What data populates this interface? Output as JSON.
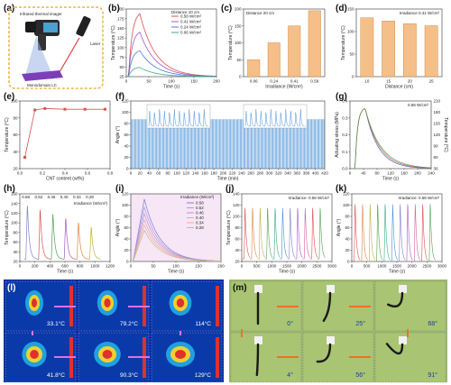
{
  "panel_letters": [
    "(a)",
    "(b)",
    "(c)",
    "(d)",
    "(e)",
    "(f)",
    "(g)",
    "(h)",
    "(i)",
    "(j)",
    "(k)",
    "(l)",
    "(m)"
  ],
  "panel_a": {
    "labels": {
      "imager": "Infrared thermal imager",
      "laser": "Laser",
      "sample": "Monodomain LC"
    }
  },
  "chart_data": [
    {
      "id": "b",
      "type": "line",
      "xlabel": "Time (s)",
      "ylabel": "Temperature (°C)",
      "xticks": [
        "0",
        "50",
        "100",
        "150",
        "200"
      ],
      "yticks": [
        "25",
        "50",
        "75",
        "100",
        "125",
        "150",
        "175",
        "200"
      ],
      "xlim": [
        0,
        200
      ],
      "ylim": [
        25,
        200
      ],
      "legend_title": "Distance 10 cm",
      "series": [
        {
          "name": "0.58 W/cm²",
          "color": "#e05050",
          "peak": 195
        },
        {
          "name": "0.41 W/cm²",
          "color": "#a05ac8",
          "peak": 145
        },
        {
          "name": "0.24 W/cm²",
          "color": "#4a7ad8",
          "peak": 95
        },
        {
          "name": "0.06 W/cm²",
          "color": "#3aaa8a",
          "peak": 50
        }
      ]
    },
    {
      "id": "c",
      "type": "bar",
      "note": "Distance 20 cm",
      "xlabel": "Irradiance (W/cm²)",
      "ylabel": "Temperature (°C)",
      "categories": [
        "0.06",
        "0.24",
        "0.41",
        "0.58"
      ],
      "values": [
        50,
        100,
        150,
        195
      ],
      "yticks": [
        "0",
        "50",
        "100",
        "150",
        "200"
      ],
      "ylim": [
        0,
        200
      ],
      "color": "#f5bf8a"
    },
    {
      "id": "d",
      "type": "bar",
      "note": "Irradiance 0.41 W/cm²",
      "xlabel": "Distance (cm)",
      "ylabel": "Temperature (°C)",
      "categories": [
        "10",
        "15",
        "20",
        "25"
      ],
      "values": [
        148,
        140,
        133,
        128
      ],
      "yticks": [
        "0",
        "50",
        "100",
        "150"
      ],
      "ylim": [
        0,
        170
      ],
      "color": "#f5bf8a"
    },
    {
      "id": "e",
      "type": "line",
      "xlabel": "CNT content (wt%)",
      "ylabel": "Temperature (°C)",
      "x": [
        0.0,
        0.1,
        0.2,
        0.4,
        0.6,
        0.8
      ],
      "y": [
        30,
        93,
        95,
        94,
        94,
        94
      ],
      "xticks": [
        "0.0",
        "0.2",
        "0.4",
        "0.6",
        "0.8"
      ],
      "yticks": [
        "20",
        "40",
        "60",
        "80",
        "100"
      ],
      "xlim": [
        -0.05,
        0.85
      ],
      "ylim": [
        15,
        105
      ],
      "color": "#e05050"
    },
    {
      "id": "f",
      "type": "line",
      "xlabel": "Time (min)",
      "ylabel": "Angle (°)",
      "xticks": [
        "0",
        "20",
        "40",
        "60",
        "80",
        "100",
        "120",
        "140",
        "160",
        "180",
        "200",
        "220",
        "240",
        "260",
        "280",
        "300",
        "320",
        "340",
        "360",
        "380",
        "400",
        "420"
      ],
      "yticks": [
        "0",
        "20",
        "40",
        "60",
        "80",
        "100",
        "120"
      ],
      "xlim": [
        0,
        440
      ],
      "ylim": [
        0,
        130
      ],
      "color": "#4a90d8"
    },
    {
      "id": "g",
      "type": "line",
      "note": "0.58 W/cm²",
      "xlabel": "Time (s)",
      "ylabel": "Actuating stress (MPa)",
      "y2label": "Temperature (°C)",
      "xticks": [
        "0",
        "40",
        "80",
        "120",
        "160",
        "200",
        "240"
      ],
      "yticks": [
        "0.0",
        "0.1",
        "0.2",
        "0.3",
        "0.4"
      ],
      "y2ticks": [
        "30",
        "60",
        "90",
        "120",
        "150",
        "180",
        "210"
      ],
      "xlim": [
        0,
        240
      ],
      "ylim": [
        0,
        0.4
      ]
    },
    {
      "id": "h",
      "type": "line",
      "xlabel": "Time (s)",
      "ylabel": "Temperature (°C)",
      "xticks": [
        "0",
        "200",
        "400",
        "600",
        "800",
        "1000",
        "1200"
      ],
      "yticks": [
        "20",
        "40",
        "60",
        "80",
        "100",
        "120",
        "140",
        "160"
      ],
      "xlim": [
        0,
        1200
      ],
      "ylim": [
        20,
        170
      ],
      "irradiance_label": "Irradiance (W/cm²)",
      "values_on_top": [
        "0.58",
        "0.52",
        "0.46",
        "0.40",
        "0.34",
        "0.28"
      ]
    },
    {
      "id": "i",
      "type": "line",
      "xlabel": "Time (s)",
      "ylabel": "Angle (°)",
      "xticks": [
        "0",
        "50",
        "100",
        "150",
        "200"
      ],
      "yticks": [
        "0",
        "20",
        "40",
        "60",
        "80",
        "100",
        "120"
      ],
      "xlim": [
        0,
        200
      ],
      "ylim": [
        0,
        130
      ],
      "legend_title": "Irradiance (W/cm²)",
      "series": [
        {
          "name": "0.58",
          "color": "#7f7fd0"
        },
        {
          "name": "0.52",
          "color": "#9fa0e0"
        },
        {
          "name": "0.46",
          "color": "#c090d8"
        },
        {
          "name": "0.40",
          "color": "#e8a0b8"
        },
        {
          "name": "0.34",
          "color": "#f0b090"
        },
        {
          "name": "0.28",
          "color": "#c0c080"
        }
      ]
    },
    {
      "id": "j",
      "type": "line",
      "note": "Irradiance: 0.58 W/cm²",
      "xlabel": "Time (s)",
      "ylabel": "Temperature (°C)",
      "xticks": [
        "0",
        "500",
        "1000",
        "1500",
        "2000",
        "2500",
        "3000"
      ],
      "yticks": [
        "20",
        "40",
        "60",
        "80",
        "100",
        "120",
        "140"
      ],
      "xlim": [
        0,
        3000
      ],
      "ylim": [
        20,
        150
      ]
    },
    {
      "id": "k",
      "type": "line",
      "note": "Irradiance: 0.58 W/cm²",
      "xlabel": "Time (s)",
      "ylabel": "Angle (°)",
      "xticks": [
        "0",
        "500",
        "1000",
        "1500",
        "2000",
        "2500",
        "3000"
      ],
      "yticks": [
        "0",
        "20",
        "40",
        "60",
        "80",
        "100",
        "120"
      ],
      "xlim": [
        0,
        3000
      ],
      "ylim": [
        0,
        130
      ]
    }
  ],
  "panel_l": {
    "temps": [
      "33.1°C",
      "79.2°C",
      "114°C",
      "41.8°C",
      "90.3°C",
      "129°C"
    ]
  },
  "panel_m": {
    "angles": [
      "0°",
      "25°",
      "68°",
      "4°",
      "56°",
      "91°"
    ]
  }
}
